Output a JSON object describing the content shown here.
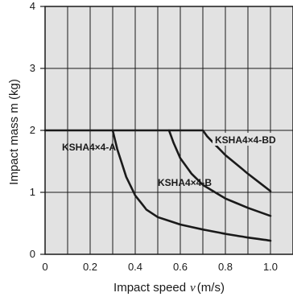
{
  "chart_data": {
    "type": "line",
    "title": "",
    "xlabel": "Impact speed",
    "xlabel_symbol": "v",
    "xlabel_unit": "(m/s)",
    "ylabel": "Impact mass m (kg)",
    "xlim": [
      0,
      1.1
    ],
    "ylim": [
      0,
      4
    ],
    "x_ticks": [
      0,
      0.2,
      0.4,
      0.6,
      0.8,
      1.0
    ],
    "x_tick_labels": [
      "0",
      "0.2",
      "0.4",
      "0.6",
      "0.8",
      "1.0"
    ],
    "y_ticks": [
      0,
      1,
      2,
      3,
      4
    ],
    "y_tick_labels": [
      "0",
      "1",
      "2",
      "3",
      "4"
    ],
    "minor_x_step": 0.1,
    "grid": true,
    "legend": "none",
    "colors": {
      "plot_bg": "#e2e2e2",
      "grid": "#1a1a1a",
      "line": "#1a1a1a"
    },
    "series": [
      {
        "name": "KSHA4×4-A",
        "points": [
          [
            0,
            2.0
          ],
          [
            0.3,
            2.0
          ],
          [
            0.32,
            1.7
          ],
          [
            0.36,
            1.25
          ],
          [
            0.4,
            0.95
          ],
          [
            0.45,
            0.72
          ],
          [
            0.5,
            0.6
          ],
          [
            0.6,
            0.48
          ],
          [
            0.7,
            0.4
          ],
          [
            0.8,
            0.33
          ],
          [
            0.9,
            0.27
          ],
          [
            1.0,
            0.22
          ]
        ]
      },
      {
        "name": "KSHA4×4-B",
        "points": [
          [
            0.3,
            2.0
          ],
          [
            0.55,
            2.0
          ],
          [
            0.57,
            1.8
          ],
          [
            0.6,
            1.55
          ],
          [
            0.65,
            1.3
          ],
          [
            0.7,
            1.12
          ],
          [
            0.8,
            0.9
          ],
          [
            0.9,
            0.75
          ],
          [
            1.0,
            0.62
          ]
        ]
      },
      {
        "name": "KSHA4×4-BD",
        "points": [
          [
            0.55,
            2.0
          ],
          [
            0.7,
            2.0
          ],
          [
            0.72,
            1.9
          ],
          [
            0.76,
            1.75
          ],
          [
            0.8,
            1.6
          ],
          [
            0.9,
            1.3
          ],
          [
            1.0,
            1.02
          ]
        ]
      }
    ]
  }
}
